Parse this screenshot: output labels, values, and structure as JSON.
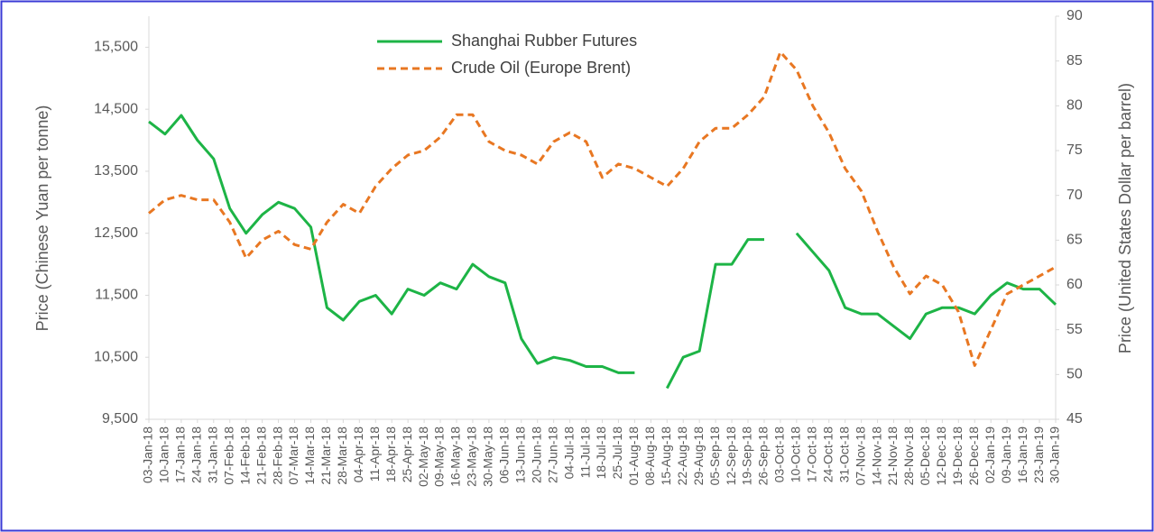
{
  "chart_data": {
    "type": "line",
    "y_label": "Price (Chinese Yuan per tonne)",
    "y2_label": "Price (United States Dollar per barrel)",
    "categories": [
      "03-Jan-18",
      "10-Jan-18",
      "17-Jan-18",
      "24-Jan-18",
      "31-Jan-18",
      "07-Feb-18",
      "14-Feb-18",
      "21-Feb-18",
      "28-Feb-18",
      "07-Mar-18",
      "14-Mar-18",
      "21-Mar-18",
      "28-Mar-18",
      "04-Apr-18",
      "11-Apr-18",
      "18-Apr-18",
      "25-Apr-18",
      "02-May-18",
      "09-May-18",
      "16-May-18",
      "23-May-18",
      "30-May-18",
      "06-Jun-18",
      "13-Jun-18",
      "20-Jun-18",
      "27-Jun-18",
      "04-Jul-18",
      "11-Jul-18",
      "18-Jul-18",
      "25-Jul-18",
      "01-Aug-18",
      "08-Aug-18",
      "15-Aug-18",
      "22-Aug-18",
      "29-Aug-18",
      "05-Sep-18",
      "12-Sep-18",
      "19-Sep-18",
      "26-Sep-18",
      "03-Oct-18",
      "10-Oct-18",
      "17-Oct-18",
      "24-Oct-18",
      "31-Oct-18",
      "07-Nov-18",
      "14-Nov-18",
      "21-Nov-18",
      "28-Nov-18",
      "05-Dec-18",
      "12-Dec-18",
      "19-Dec-18",
      "26-Dec-18",
      "02-Jan-19",
      "09-Jan-19",
      "16-Jan-19",
      "23-Jan-19",
      "30-Jan-19"
    ],
    "series": [
      {
        "name": "Shanghai Rubber Futures",
        "color": "#1db446",
        "dashed": false,
        "axis": "y",
        "values": [
          14300,
          14100,
          14400,
          14000,
          13700,
          12900,
          12500,
          12800,
          13000,
          12900,
          12600,
          11300,
          11100,
          11400,
          11500,
          11200,
          11600,
          11500,
          11700,
          11600,
          12000,
          11800,
          11700,
          10800,
          10400,
          10500,
          10450,
          10350,
          10350,
          10250,
          10250,
          null,
          10000,
          10500,
          10600,
          12000,
          12000,
          12400,
          12400,
          null,
          12500,
          12200,
          11900,
          11300,
          11200,
          11200,
          11000,
          10800,
          11200,
          11300,
          11300,
          11200,
          11500,
          11700,
          11600,
          11600,
          11350
        ]
      },
      {
        "name": "Crude Oil (Europe Brent)",
        "color": "#e87722",
        "dashed": true,
        "axis": "y2",
        "values": [
          68,
          69.5,
          70,
          69.5,
          69.5,
          67,
          63,
          65,
          66,
          64.5,
          64,
          67,
          69,
          68,
          71,
          73,
          74.5,
          75,
          76.5,
          79,
          79,
          76,
          75,
          74.5,
          73.5,
          76,
          77,
          76,
          72,
          73.5,
          73,
          72,
          71,
          73,
          76,
          77.5,
          77.5,
          79,
          81,
          86,
          84,
          80,
          77,
          73,
          70.5,
          66,
          62,
          59,
          61,
          60,
          57,
          51,
          55,
          59,
          60,
          61,
          62
        ]
      }
    ],
    "ylim": [
      9500,
      16000
    ],
    "yticks": [
      {
        "value": 9500,
        "label": "9,500"
      },
      {
        "value": 10500,
        "label": "10,500"
      },
      {
        "value": 11500,
        "label": "11,500"
      },
      {
        "value": 12500,
        "label": "12,500"
      },
      {
        "value": 13500,
        "label": "13,500"
      },
      {
        "value": 14500,
        "label": "14,500"
      },
      {
        "value": 15500,
        "label": "15,500"
      }
    ],
    "y2lim": [
      45,
      90
    ],
    "y2ticks": [
      45,
      50,
      55,
      60,
      65,
      70,
      75,
      80,
      85,
      90
    ],
    "legend": "top"
  }
}
